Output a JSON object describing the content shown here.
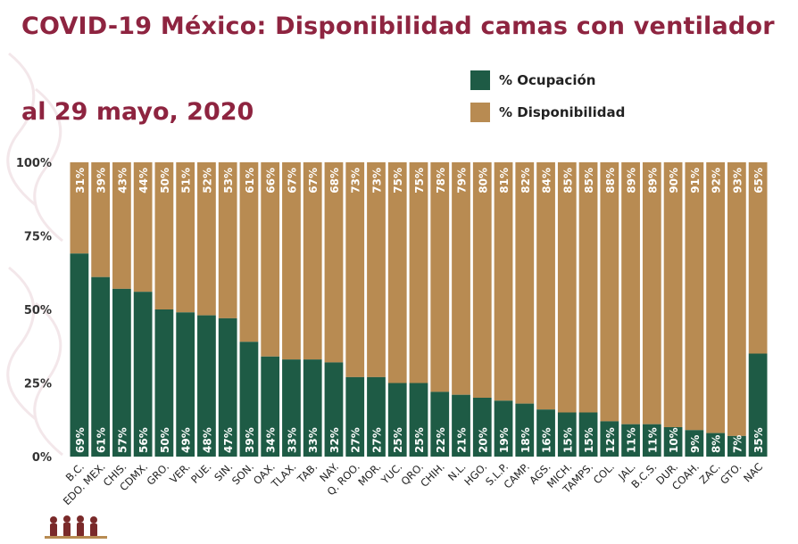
{
  "title": "COVID-19 México: Disponibilidad camas con ventilador",
  "subtitle": "al 29 mayo, 2020",
  "colors": {
    "title": "#8e2440",
    "ocupacion": "#1e5b45",
    "disponibilidad": "#b88b52"
  },
  "chart_data": {
    "type": "bar",
    "stacked": true,
    "categories": [
      "B.C.",
      "EDO. MEX.",
      "CHIS.",
      "CDMX.",
      "GRO.",
      "VER.",
      "PUE.",
      "SIN.",
      "SON.",
      "OAX.",
      "TLAX.",
      "TAB.",
      "NAY.",
      "Q. ROO.",
      "MOR.",
      "YUC.",
      "QRO.",
      "CHIH.",
      "N.L.",
      "HGO.",
      "S.L.P.",
      "CAMP.",
      "AGS.",
      "MICH.",
      "TAMPS.",
      "COL.",
      "JAL.",
      "B.C.S.",
      "DUR.",
      "COAH.",
      "ZAC.",
      "GTO.",
      "NAC"
    ],
    "series": [
      {
        "name": "% Ocupación",
        "color": "#1e5b45",
        "values": [
          69,
          61,
          57,
          56,
          50,
          49,
          48,
          47,
          39,
          34,
          33,
          33,
          32,
          27,
          27,
          25,
          25,
          22,
          21,
          20,
          19,
          18,
          16,
          15,
          15,
          12,
          11,
          11,
          10,
          9,
          8,
          7,
          35
        ]
      },
      {
        "name": "% Disponibilidad",
        "color": "#b88b52",
        "values": [
          31,
          39,
          43,
          44,
          50,
          51,
          52,
          53,
          61,
          66,
          67,
          67,
          68,
          73,
          73,
          75,
          75,
          78,
          79,
          80,
          81,
          82,
          84,
          85,
          85,
          88,
          89,
          89,
          90,
          91,
          92,
          93,
          65
        ]
      }
    ],
    "ylim": [
      0,
      100
    ],
    "yticks": [
      "0%",
      "25%",
      "50%",
      "75%",
      "100%"
    ],
    "legend": "top-right"
  }
}
